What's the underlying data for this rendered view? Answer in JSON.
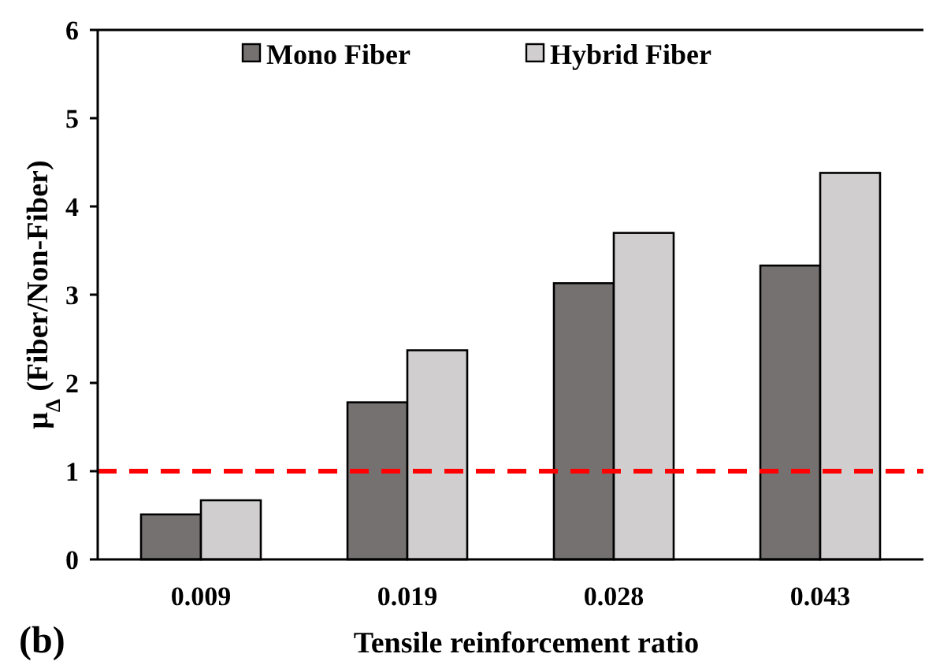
{
  "chart_data": {
    "type": "bar",
    "xlabel": "Tensile reinforcement ratio",
    "ylabel": "μ$_{Δ}$ (Fiber/Non-Fiber)",
    "categories": [
      "0.009",
      "0.019",
      "0.028",
      "0.043"
    ],
    "series": [
      {
        "name": "Mono Fiber",
        "color": "#767171",
        "values": [
          0.51,
          1.78,
          3.13,
          3.33
        ]
      },
      {
        "name": "Hybrid Fiber",
        "color": "#d0cece",
        "values": [
          0.67,
          2.37,
          3.7,
          4.38
        ]
      }
    ],
    "ylim": [
      0,
      6
    ],
    "yticks": [
      0,
      1,
      2,
      3,
      4,
      5,
      6
    ],
    "grid": false,
    "legend": "top",
    "ref_lines": [
      {
        "axis": "y",
        "value": 1,
        "color": "#ff0000",
        "line_style": "dashed"
      }
    ],
    "annotations": [
      "(b)"
    ]
  }
}
